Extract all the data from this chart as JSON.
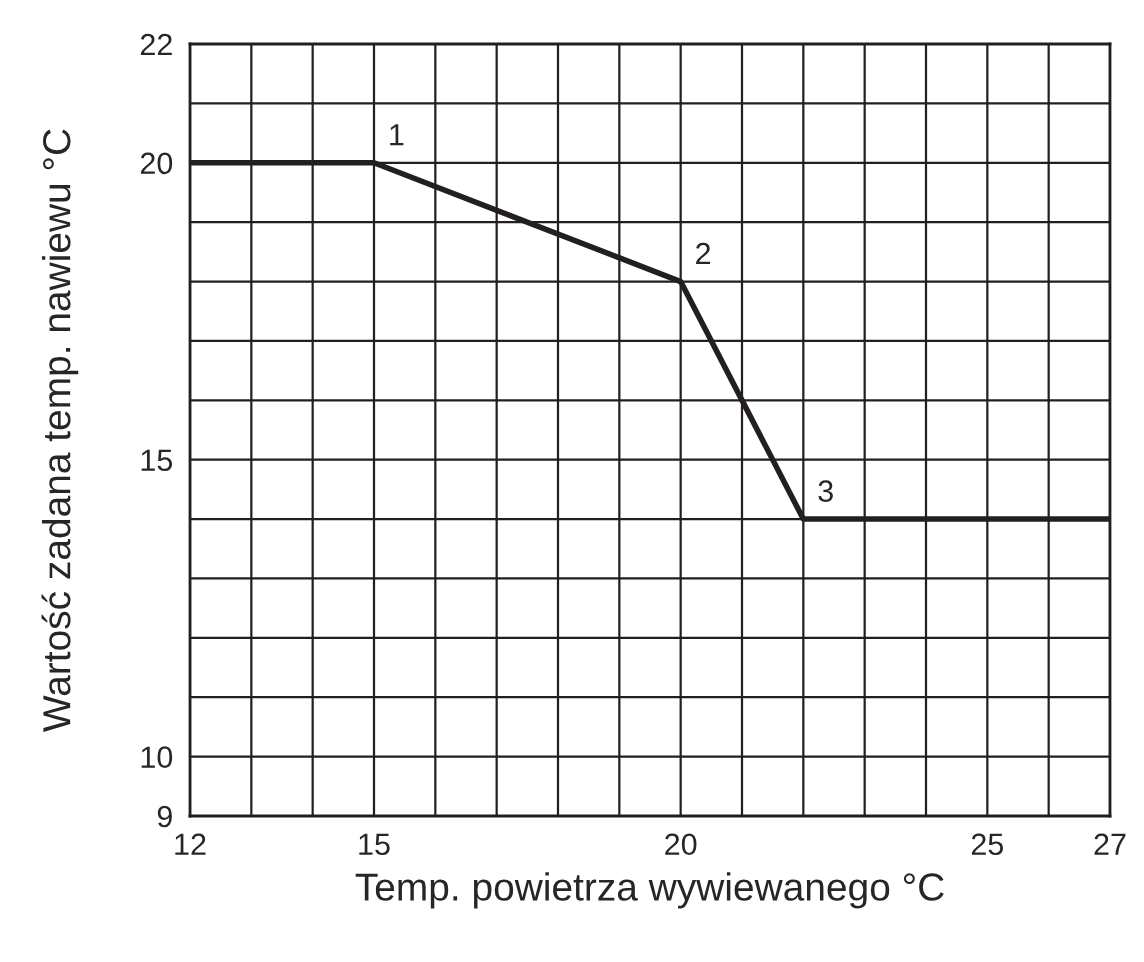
{
  "chart_data": {
    "type": "line",
    "xlabel": "Temp. powietrza wywiewanego °C",
    "ylabel": "Wartość zadana temp. nawiewu °C",
    "x": [
      12,
      15,
      20,
      22,
      27
    ],
    "series": [
      {
        "color": "#231f20",
        "values": [
          20,
          20,
          18,
          14,
          14
        ]
      }
    ],
    "xlim": [
      12,
      27
    ],
    "ylim": [
      9,
      22
    ],
    "xticks": [
      12,
      {
        "value": 13,
        "label": null
      },
      {
        "value": 14,
        "label": null
      },
      15,
      {
        "value": 16,
        "label": null
      },
      {
        "value": 17,
        "label": null
      },
      {
        "value": 18,
        "label": null
      },
      {
        "value": 19,
        "label": null
      },
      20,
      {
        "value": 21,
        "label": null
      },
      {
        "value": 22,
        "label": null
      },
      {
        "value": 23,
        "label": null
      },
      {
        "value": 24,
        "label": null
      },
      25,
      {
        "value": 26,
        "label": null
      },
      27
    ],
    "yticks": [
      9,
      10,
      {
        "value": 11,
        "label": null
      },
      {
        "value": 12,
        "label": null
      },
      {
        "value": 13,
        "label": null
      },
      {
        "value": 14,
        "label": null
      },
      15,
      {
        "value": 16,
        "label": null
      },
      {
        "value": 17,
        "label": null
      },
      {
        "value": 18,
        "label": null
      },
      {
        "value": 19,
        "label": null
      },
      20,
      {
        "value": 21,
        "label": null
      },
      22
    ],
    "grid": true,
    "marker": "none",
    "line_style": "solid",
    "annotations": [
      {
        "text": "1",
        "x": 15,
        "y": 20
      },
      {
        "text": "2",
        "x": 20,
        "y": 18
      },
      {
        "text": "3",
        "x": 22,
        "y": 14
      }
    ]
  }
}
